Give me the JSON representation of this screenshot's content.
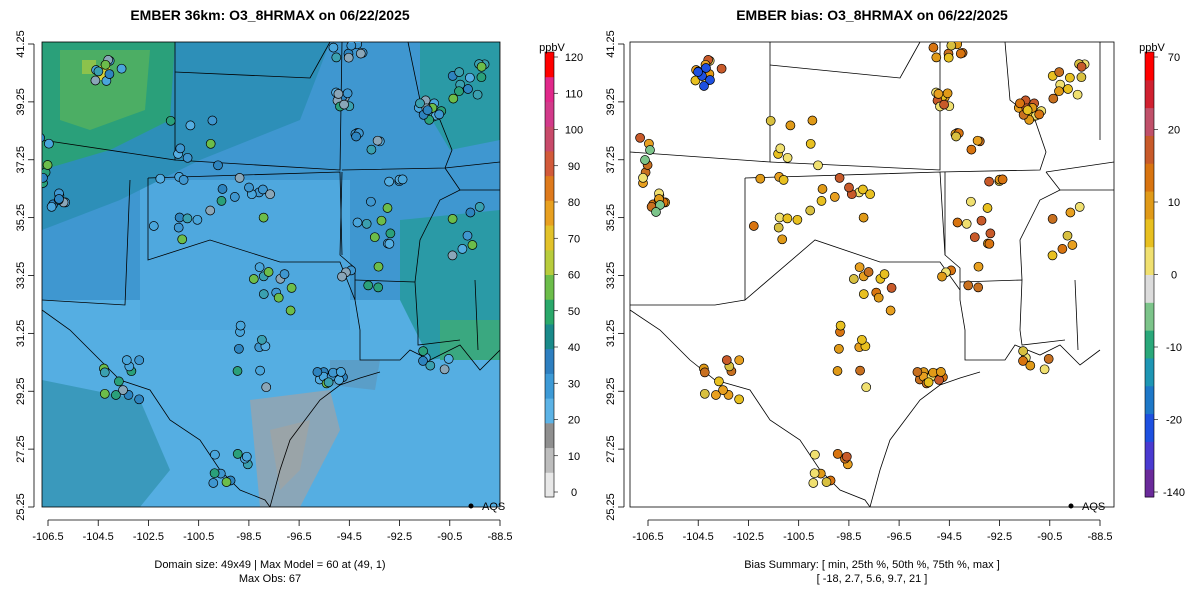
{
  "panels": [
    {
      "title": "EMBER 36km: O3_8HRMAX on 06/22/2025",
      "colorbar": {
        "units": "ppbV",
        "ticks": [
          "120",
          "110",
          "100",
          "90",
          "80",
          "70",
          "60",
          "50",
          "40",
          "30",
          "20",
          "10",
          "0"
        ],
        "colors": [
          "#e8e8e8",
          "#bdbdbd",
          "#8f8f8f",
          "#5cb3e6",
          "#3d9ad6",
          "#2e7fc0",
          "#1a8a8a",
          "#2aa86a",
          "#6cbd4a",
          "#b8cc3c",
          "#e2c22a",
          "#e8a020",
          "#de7a1c",
          "#d25a3a",
          "#c84a6a",
          "#d23a8a",
          "#e0288a",
          "#ff0000"
        ]
      },
      "legend_label": "AQS",
      "xticks": [
        "-106.5",
        "-104.5",
        "-102.5",
        "-100.5",
        "-98.5",
        "-96.5",
        "-94.5",
        "-92.5",
        "-90.5",
        "-88.5"
      ],
      "yticks": [
        "25.25",
        "27.25",
        "29.25",
        "31.25",
        "33.25",
        "35.25",
        "37.25",
        "39.25",
        "41.25"
      ],
      "summary_lines": [
        "Domain size: 49x49 | Max Model = 60 at (49, 1)",
        "Max Obs: 67"
      ]
    },
    {
      "title": "EMBER bias: O3_8HRMAX on 06/22/2025",
      "colorbar": {
        "units": "ppbV",
        "ticks": [
          "70",
          "20",
          "10",
          "0",
          "-10",
          "-20",
          "-140"
        ],
        "colors": [
          "#6a2a9a",
          "#4a3ad0",
          "#1e50e0",
          "#1e78c8",
          "#1e96b4",
          "#2aa87a",
          "#7cc48a",
          "#dcdcdc",
          "#f0e070",
          "#e8c020",
          "#e09a18",
          "#d87410",
          "#c85a2a",
          "#c0506a",
          "#d02030",
          "#ff0000"
        ]
      },
      "legend_label": "AQS",
      "xticks": [
        "-106.5",
        "-104.5",
        "-102.5",
        "-100.5",
        "-98.5",
        "-96.5",
        "-94.5",
        "-92.5",
        "-90.5",
        "-88.5"
      ],
      "yticks": [
        "25.25",
        "27.25",
        "29.25",
        "31.25",
        "33.25",
        "35.25",
        "37.25",
        "39.25",
        "41.25"
      ],
      "summary_lines": [
        "Bias Summary: [ min, 25th %, 50th %, 75th %, max ]",
        "[ -18,   2.7,   5.6,   9.7,   21 ]"
      ]
    }
  ],
  "stats": {
    "domain_size": "49x49",
    "max_model": 60,
    "max_model_cell": [
      49,
      1
    ],
    "max_obs": 67,
    "bias_min": -18,
    "bias_p25": 2.7,
    "bias_p50": 5.6,
    "bias_p75": 9.7,
    "bias_max": 21
  }
}
